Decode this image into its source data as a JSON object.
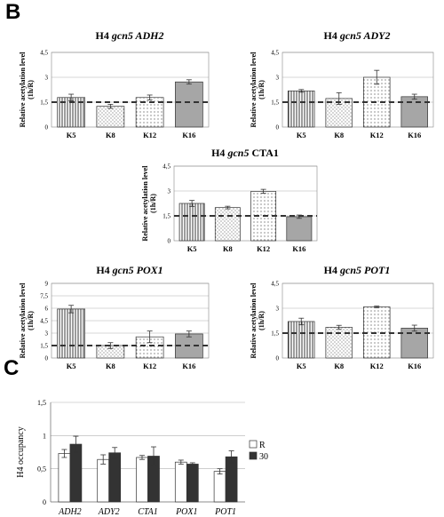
{
  "panel_labels": {
    "b": "B",
    "c": "C"
  },
  "colors": {
    "dark_bar": "#333333",
    "k16_bar": "#a6a6a6",
    "white_bar": "#ffffff",
    "dashed_line": "#333333",
    "gridline": "#b0b0b0"
  },
  "chart_data": [
    {
      "id": "adh2",
      "type": "bar",
      "title_prefix": "H4 ",
      "title_gene": "gcn5 ADH2",
      "title_suffix": "",
      "ylabel_line1": "Relative acetylation level",
      "ylabel_line2": "(1h/R)",
      "categories": [
        "K5",
        "K8",
        "K12",
        "K16"
      ],
      "values": [
        1.78,
        1.25,
        1.78,
        2.72
      ],
      "errors": [
        0.2,
        0.12,
        0.15,
        0.13
      ],
      "patterns": [
        "vertical",
        "dotted-diag",
        "dotted",
        "solid"
      ],
      "ylim": [
        0,
        4.5
      ],
      "yticks": [
        "0",
        "1,5",
        "3",
        "4,5"
      ],
      "ytick_values": [
        0,
        1.5,
        3,
        4.5
      ],
      "reference_line": 1.5,
      "grid": true,
      "legend": "none"
    },
    {
      "id": "ady2",
      "type": "bar",
      "title_prefix": "H4 ",
      "title_gene": "gcn5 ADY2",
      "title_suffix": "",
      "ylabel_line1": "Relative acetylation level",
      "ylabel_line2": "(1h/R)",
      "categories": [
        "K5",
        "K8",
        "K12",
        "K16"
      ],
      "values": [
        2.18,
        1.72,
        3.0,
        1.83
      ],
      "errors": [
        0.08,
        0.35,
        0.42,
        0.15
      ],
      "patterns": [
        "vertical",
        "dotted-diag",
        "dotted",
        "solid"
      ],
      "ylim": [
        0,
        4.5
      ],
      "yticks": [
        "0",
        "1,5",
        "3",
        "4,5"
      ],
      "ytick_values": [
        0,
        1.5,
        3,
        4.5
      ],
      "reference_line": 1.5,
      "grid": true,
      "legend": "none"
    },
    {
      "id": "cta1",
      "type": "bar",
      "title_prefix": "H4 ",
      "title_gene": "gcn5",
      "title_suffix": " CTA1",
      "ylabel_line1": "Relative acetylation level",
      "ylabel_line2": "(1h/R)",
      "categories": [
        "K5",
        "K8",
        "K12",
        "K16"
      ],
      "values": [
        2.25,
        2.0,
        2.98,
        1.45
      ],
      "errors": [
        0.18,
        0.08,
        0.12,
        0.1
      ],
      "patterns": [
        "vertical",
        "dotted-diag",
        "dotted",
        "solid"
      ],
      "ylim": [
        0,
        4.5
      ],
      "yticks": [
        "0",
        "1,5",
        "3",
        "4,5"
      ],
      "ytick_values": [
        0,
        1.5,
        3,
        4.5
      ],
      "reference_line": 1.5,
      "grid": true,
      "legend": "none"
    },
    {
      "id": "pox1",
      "type": "bar",
      "title_prefix": "H4 ",
      "title_gene": "gcn5 POX1",
      "title_suffix": "",
      "ylabel_line1": "Relative acetylation level",
      "ylabel_line2": "(1h/R)",
      "categories": [
        "K5",
        "K8",
        "K12",
        "K16"
      ],
      "values": [
        5.9,
        1.5,
        2.55,
        2.9
      ],
      "errors": [
        0.45,
        0.35,
        0.7,
        0.35
      ],
      "patterns": [
        "vertical",
        "dotted-diag",
        "dotted",
        "solid"
      ],
      "ylim": [
        0,
        9
      ],
      "yticks": [
        "0",
        "1,5",
        "3",
        "4,5",
        "6",
        "7,5",
        "9"
      ],
      "ytick_values": [
        0,
        1.5,
        3,
        4.5,
        6,
        7.5,
        9
      ],
      "reference_line": 1.5,
      "grid": true,
      "legend": "none"
    },
    {
      "id": "pot1",
      "type": "bar",
      "title_prefix": "H4 ",
      "title_gene": "gcn5 POT1",
      "title_suffix": "",
      "ylabel_line1": "Relative acetylation level",
      "ylabel_line2": "(1h/R)",
      "categories": [
        "K5",
        "K8",
        "K12",
        "K16"
      ],
      "values": [
        2.2,
        1.85,
        3.08,
        1.8
      ],
      "errors": [
        0.2,
        0.12,
        0.05,
        0.18
      ],
      "patterns": [
        "vertical",
        "dotted-diag",
        "dotted",
        "solid"
      ],
      "ylim": [
        0,
        4.5
      ],
      "yticks": [
        "0",
        "1,5",
        "3",
        "4,5"
      ],
      "ytick_values": [
        0,
        1.5,
        3,
        4.5
      ],
      "reference_line": 1.5,
      "grid": true,
      "legend": "none"
    },
    {
      "id": "occupancy",
      "type": "bar",
      "title": "",
      "ylabel": "H4 occupancy",
      "categories": [
        "ADH2",
        "ADY2",
        "CTA1",
        "POX1",
        "POT1"
      ],
      "series": [
        {
          "name": "R",
          "values": [
            0.73,
            0.64,
            0.67,
            0.6,
            0.46
          ],
          "errors": [
            0.06,
            0.07,
            0.03,
            0.03,
            0.04
          ]
        },
        {
          "name": "30",
          "values": [
            0.87,
            0.74,
            0.69,
            0.57,
            0.68
          ],
          "errors": [
            0.12,
            0.08,
            0.14,
            0.02,
            0.09
          ]
        }
      ],
      "ylim": [
        0,
        1.5
      ],
      "yticks": [
        "0",
        "0,5",
        "1",
        "1,5"
      ],
      "ytick_values": [
        0,
        0.5,
        1,
        1.5
      ],
      "grid": true,
      "legend": "right"
    }
  ]
}
